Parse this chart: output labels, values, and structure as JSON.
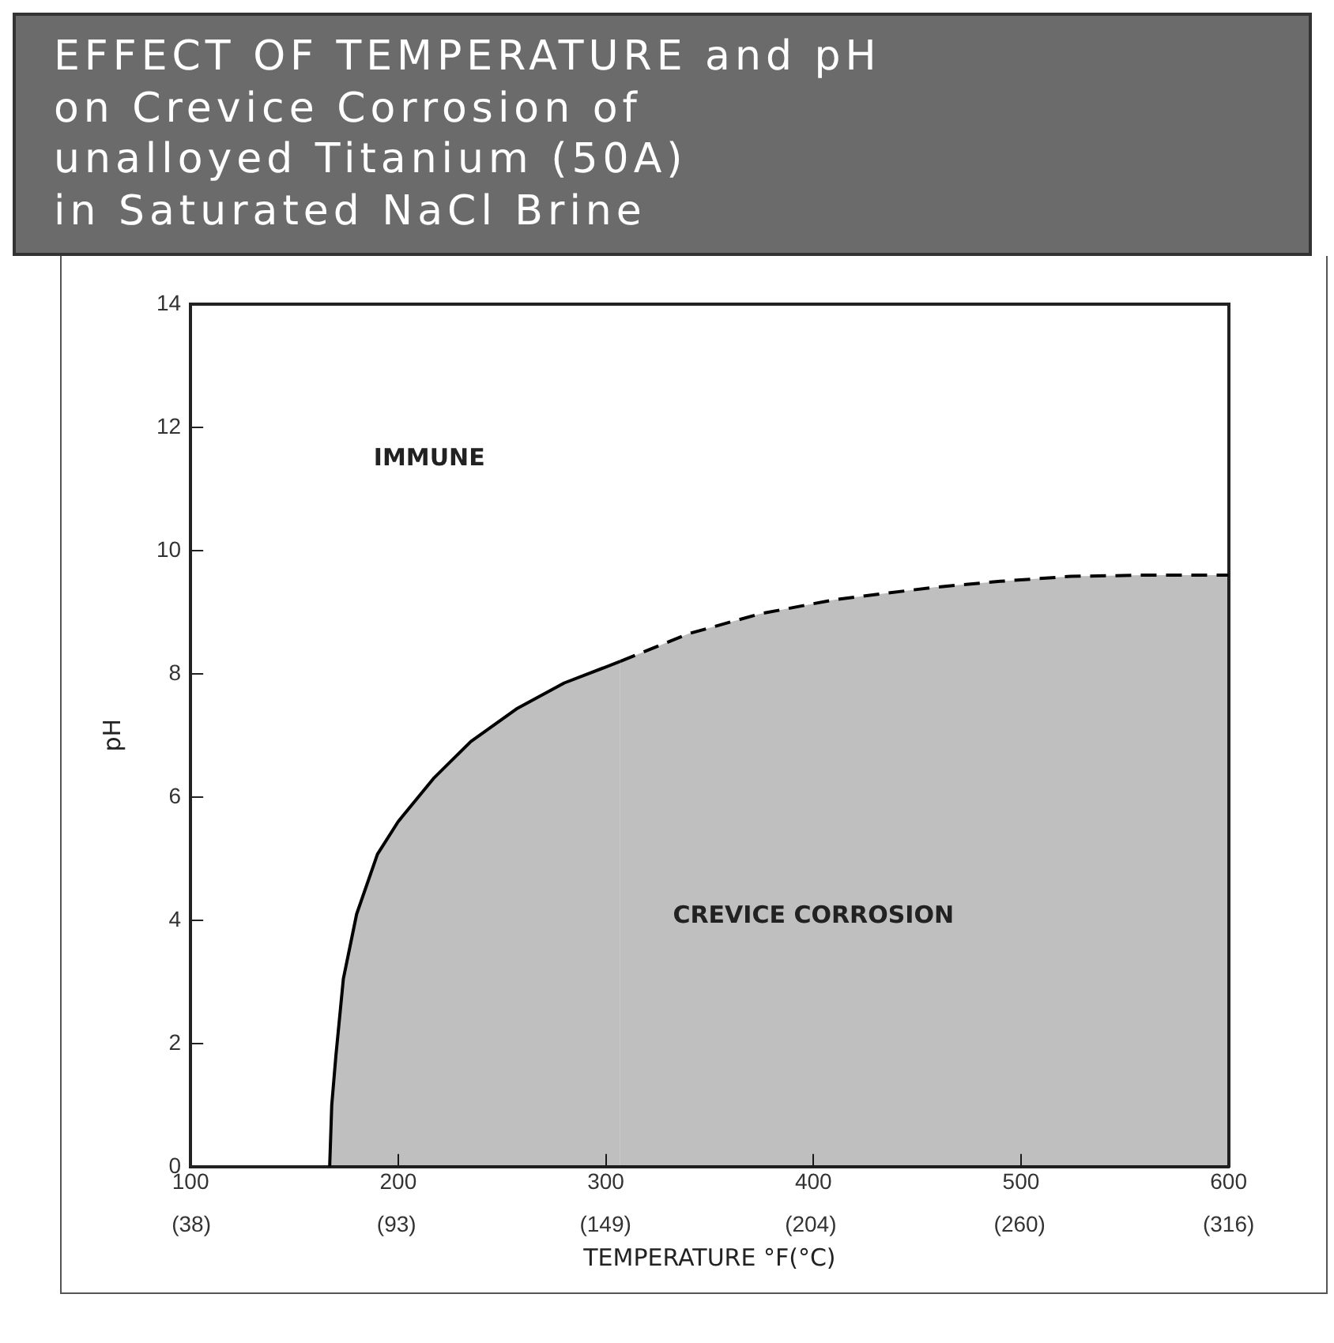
{
  "chart_data": {
    "type": "area",
    "title": "EFFECT OF TEMPERATURE and pH\non Crevice Corrosion of\nunalloyed Titanium (50A)\nin Saturated NaCl Brine",
    "xlabel": "TEMPERATURE °F(°C)",
    "ylabel": "pH",
    "xlim": [
      100,
      600
    ],
    "ylim": [
      0,
      14
    ],
    "xticks": [
      100,
      200,
      300,
      400,
      500,
      600
    ],
    "x2lim": [
      37.8,
      316
    ],
    "x2ticks": [
      {
        "value": 38,
        "label": "(38)"
      },
      {
        "value": 93,
        "label": "(93)"
      },
      {
        "value": 149,
        "label": "(149)"
      },
      {
        "value": 204,
        "label": "(204)"
      },
      {
        "value": 260,
        "label": "(260)"
      },
      {
        "value": 316,
        "label": "(316)"
      }
    ],
    "yticks": [
      0,
      2,
      4,
      6,
      8,
      10,
      12,
      14
    ],
    "grid": false,
    "legend": false,
    "marker": "none",
    "series": [
      {
        "color": "#000000",
        "line_style": "solid",
        "x": [
          167,
          168,
          170,
          173.6,
          180,
          190,
          200,
          217,
          235,
          257,
          280,
          307
        ],
        "values": [
          0,
          1,
          1.8,
          3.05,
          4.1,
          5.07,
          5.6,
          6.3,
          6.9,
          7.43,
          7.85,
          8.2
        ]
      },
      {
        "color": "#000000",
        "line_style": "dashed",
        "x": [
          307,
          340,
          374,
          410,
          457.6,
          490,
          524,
          560,
          600
        ],
        "values": [
          8.2,
          8.65,
          8.97,
          9.2,
          9.4,
          9.5,
          9.58,
          9.6,
          9.6
        ]
      }
    ],
    "annotations": [
      "IMMUNE",
      "CREVICE CORROSION"
    ]
  }
}
